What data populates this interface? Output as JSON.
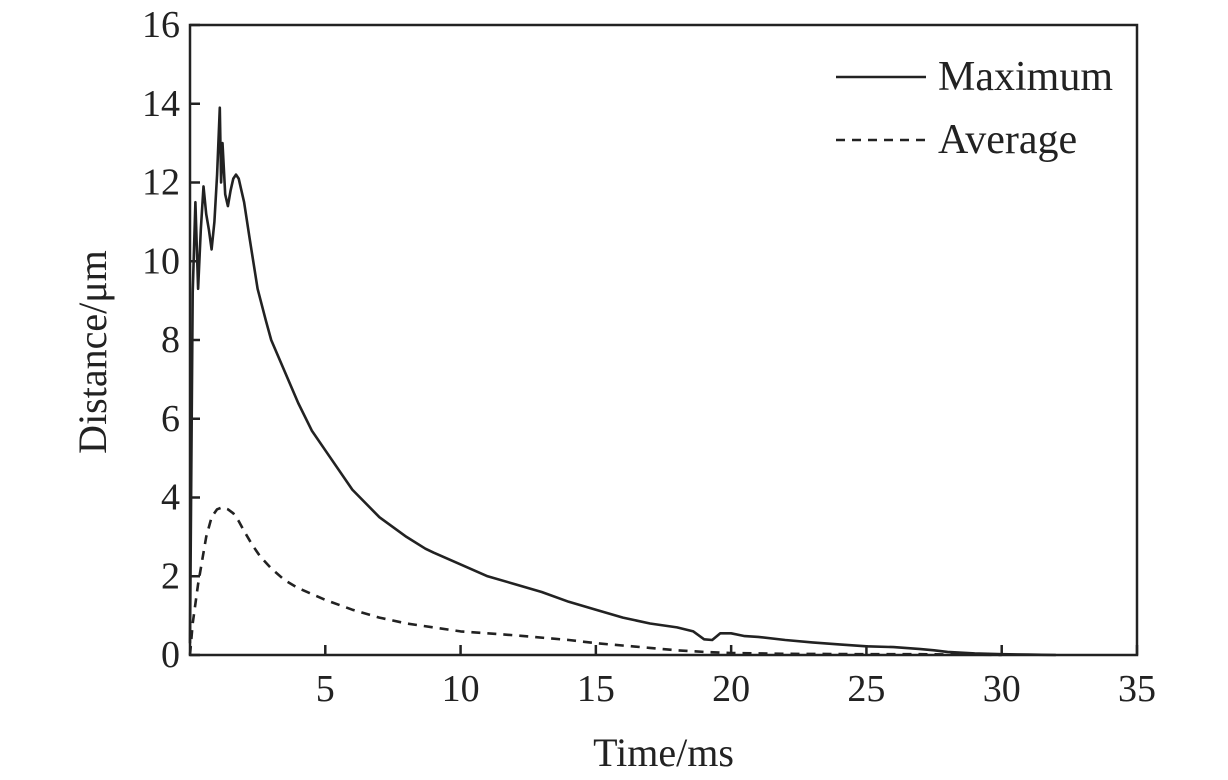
{
  "chart_data": {
    "type": "line",
    "title": "",
    "xlabel": "Time/ms",
    "ylabel": "Distance/μm",
    "xlim": [
      0,
      35
    ],
    "ylim": [
      0,
      16
    ],
    "x_ticks": [
      5,
      10,
      15,
      20,
      25,
      30,
      35
    ],
    "y_ticks": [
      0,
      2,
      4,
      6,
      8,
      10,
      12,
      14,
      16
    ],
    "grid": false,
    "legend_position": "top-right",
    "colors": {
      "line": "#222222",
      "axes": "#222222"
    },
    "series": [
      {
        "name": "Maximum",
        "style": "solid",
        "x": [
          0,
          0.05,
          0.1,
          0.2,
          0.3,
          0.4,
          0.5,
          0.6,
          0.7,
          0.8,
          0.9,
          1.0,
          1.1,
          1.15,
          1.2,
          1.3,
          1.4,
          1.5,
          1.6,
          1.7,
          1.8,
          1.9,
          2.0,
          2.2,
          2.5,
          2.8,
          3.0,
          3.5,
          4.0,
          4.5,
          5.0,
          6.0,
          7.0,
          8.0,
          8.7,
          9.0,
          10.0,
          11.0,
          12.0,
          13.0,
          14.0,
          15.0,
          16.0,
          17.0,
          18.0,
          18.6,
          19.0,
          19.3,
          19.6,
          20.0,
          20.5,
          21.0,
          22.0,
          23.0,
          24.0,
          25.0,
          26.0,
          27.0,
          27.5,
          28.0,
          29.0,
          30.0,
          31.0,
          32.0
        ],
        "y": [
          0.3,
          5.0,
          9.2,
          11.5,
          9.3,
          10.8,
          11.9,
          11.2,
          10.8,
          10.3,
          11.0,
          12.2,
          13.9,
          12.0,
          13.0,
          11.7,
          11.4,
          11.8,
          12.1,
          12.2,
          12.1,
          11.8,
          11.5,
          10.6,
          9.3,
          8.5,
          8.0,
          7.2,
          6.4,
          5.7,
          5.2,
          4.2,
          3.5,
          3.0,
          2.7,
          2.6,
          2.3,
          2.0,
          1.8,
          1.6,
          1.35,
          1.15,
          0.95,
          0.8,
          0.7,
          0.6,
          0.4,
          0.38,
          0.55,
          0.55,
          0.48,
          0.46,
          0.38,
          0.32,
          0.27,
          0.22,
          0.2,
          0.15,
          0.12,
          0.08,
          0.04,
          0.02,
          0.01,
          0.0
        ]
      },
      {
        "name": "Average",
        "style": "dashed",
        "x": [
          0,
          0.1,
          0.2,
          0.3,
          0.4,
          0.5,
          0.6,
          0.8,
          1.0,
          1.2,
          1.4,
          1.6,
          1.8,
          2.0,
          2.3,
          2.6,
          3.0,
          3.5,
          4.0,
          5.0,
          6.0,
          7.0,
          8.0,
          9.0,
          10.0,
          12.0,
          14.0,
          15.0,
          17.0,
          18.0,
          19.0,
          20.0,
          22.0,
          25.0,
          27.0,
          28.0,
          29.0,
          30.0
        ],
        "y": [
          0.0,
          0.8,
          1.3,
          1.8,
          2.2,
          2.6,
          3.0,
          3.5,
          3.7,
          3.75,
          3.7,
          3.6,
          3.4,
          3.15,
          2.8,
          2.5,
          2.2,
          1.9,
          1.7,
          1.4,
          1.15,
          0.95,
          0.8,
          0.7,
          0.6,
          0.5,
          0.38,
          0.3,
          0.18,
          0.12,
          0.08,
          0.05,
          0.03,
          0.02,
          0.02,
          0.015,
          0.01,
          0.0
        ]
      }
    ]
  }
}
